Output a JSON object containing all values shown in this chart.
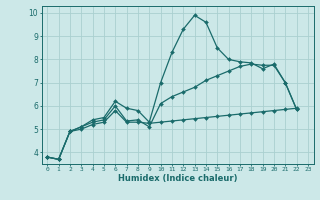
{
  "xlabel": "Humidex (Indice chaleur)",
  "bg_color": "#cce8e8",
  "line_color": "#1a6b6b",
  "grid_color": "#aad0d0",
  "xlim": [
    -0.5,
    23.5
  ],
  "ylim": [
    3.5,
    10.3
  ],
  "xticks": [
    0,
    1,
    2,
    3,
    4,
    5,
    6,
    7,
    8,
    9,
    10,
    11,
    12,
    13,
    14,
    15,
    16,
    17,
    18,
    19,
    20,
    21,
    22,
    23
  ],
  "yticks": [
    4,
    5,
    6,
    7,
    8,
    9,
    10
  ],
  "series": [
    [
      3.8,
      3.7,
      4.9,
      5.1,
      5.4,
      5.5,
      6.2,
      5.9,
      5.8,
      5.3,
      7.0,
      8.3,
      9.3,
      9.9,
      9.6,
      8.5,
      8.0,
      7.9,
      7.85,
      7.6,
      7.8,
      7.0,
      5.85
    ],
    [
      3.8,
      3.7,
      4.9,
      5.1,
      5.3,
      5.4,
      6.0,
      5.35,
      5.4,
      5.1,
      6.1,
      6.4,
      6.6,
      6.8,
      7.1,
      7.3,
      7.5,
      7.7,
      7.8,
      7.75,
      7.75,
      7.0,
      5.85
    ],
    [
      3.8,
      3.7,
      4.9,
      5.0,
      5.2,
      5.3,
      5.8,
      5.3,
      5.3,
      5.25,
      5.3,
      5.35,
      5.4,
      5.45,
      5.5,
      5.55,
      5.6,
      5.65,
      5.7,
      5.75,
      5.8,
      5.85,
      5.9
    ]
  ]
}
